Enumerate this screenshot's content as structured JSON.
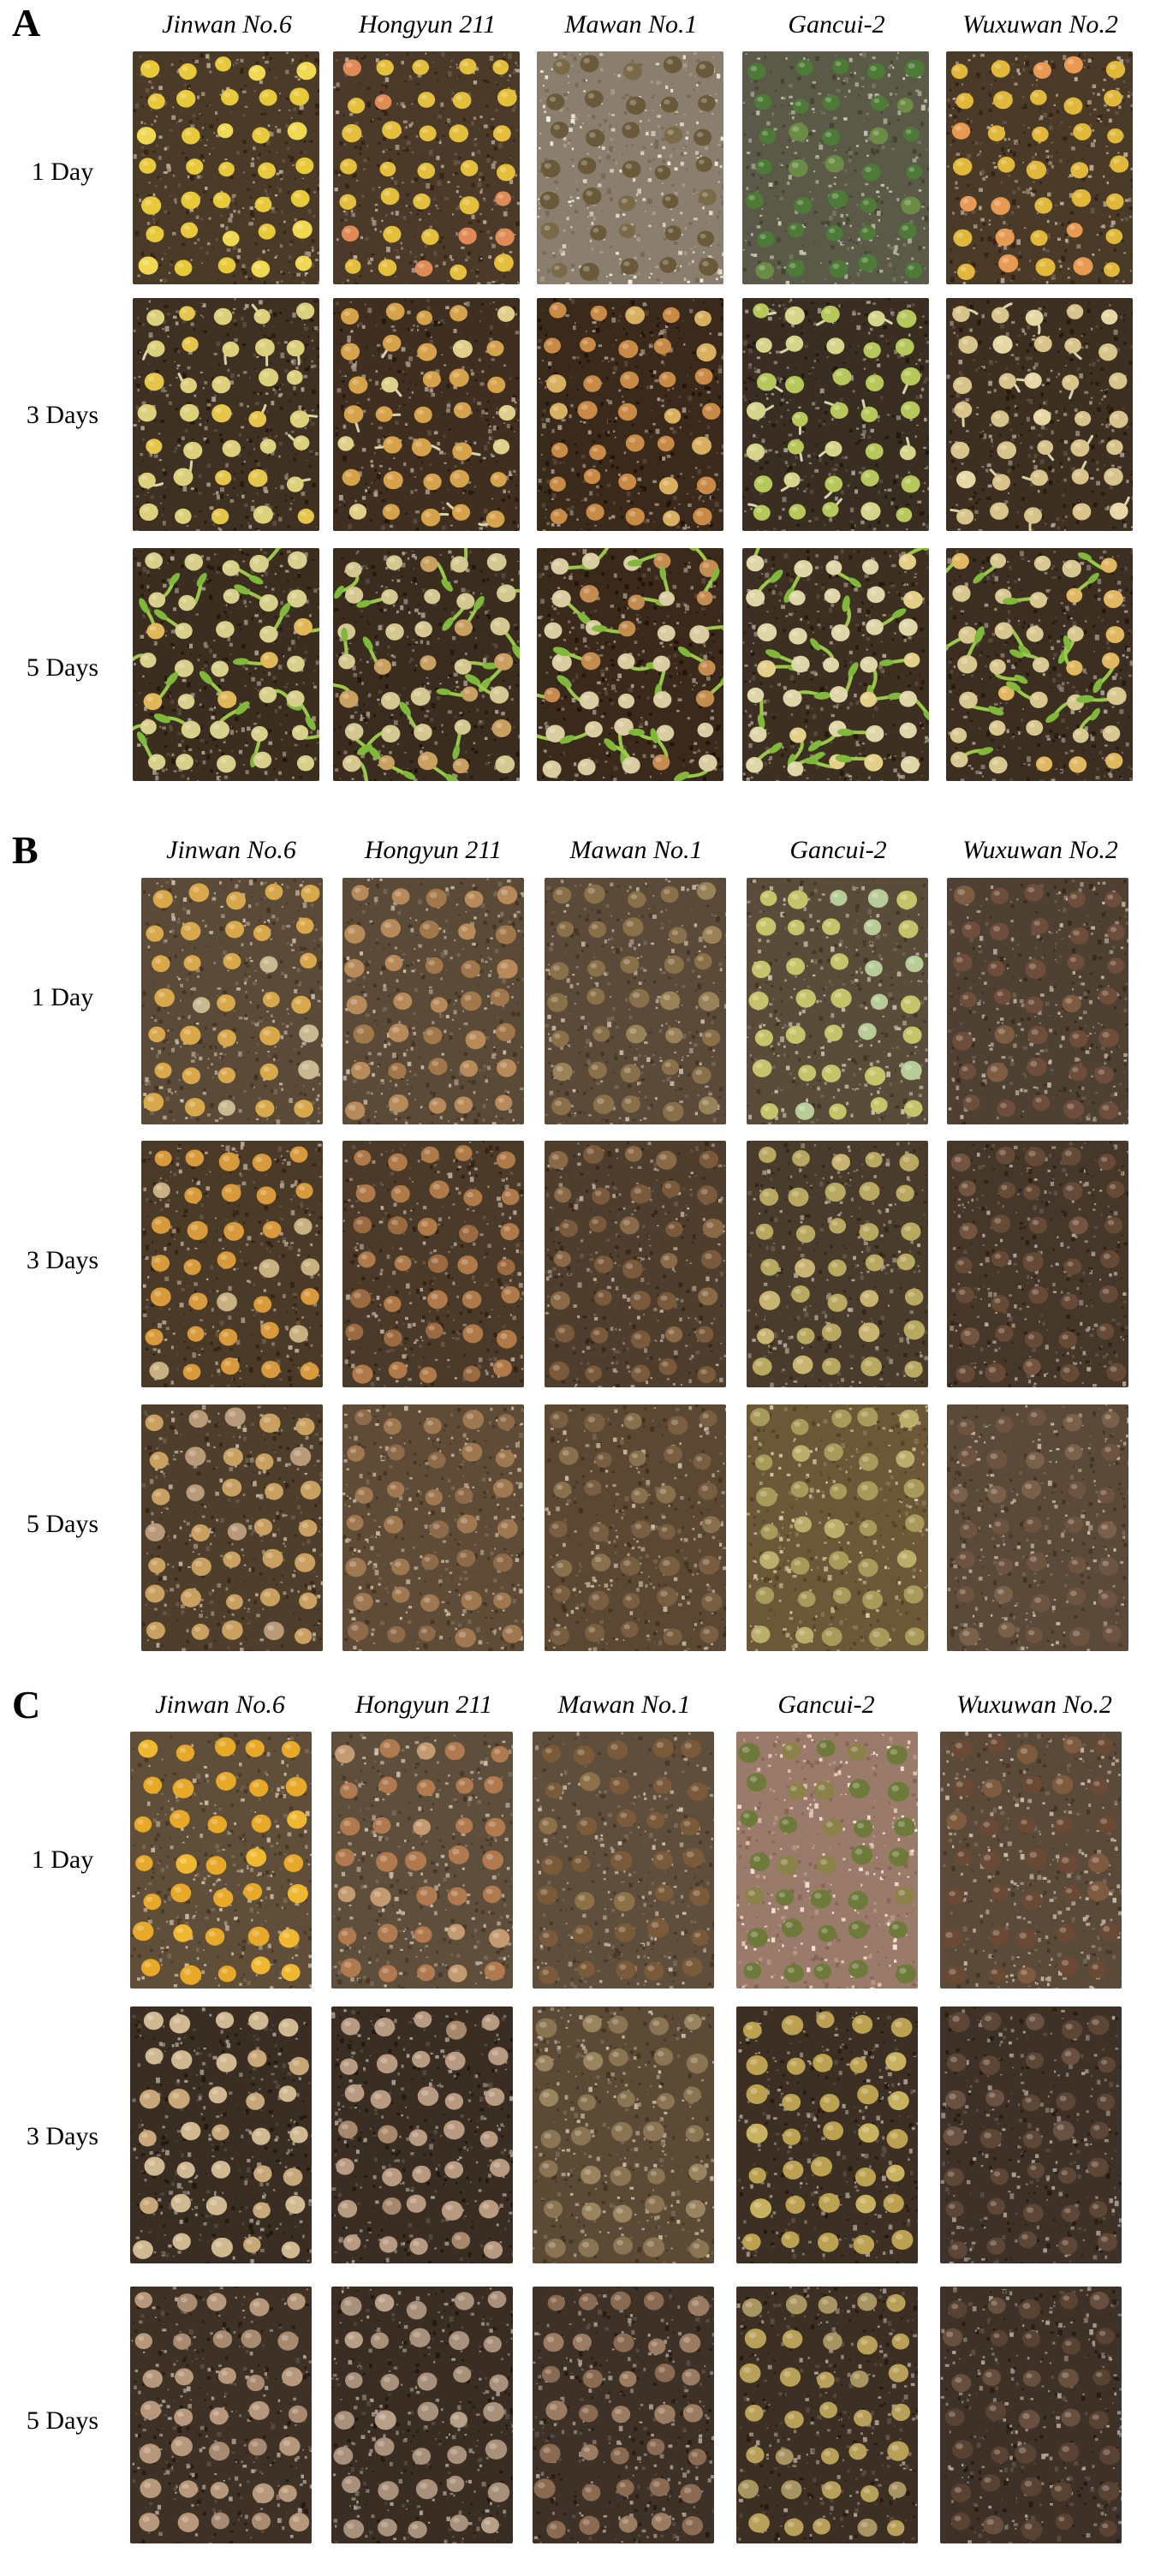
{
  "panels": [
    {
      "label": "A",
      "columns": [
        "Jinwan No.6",
        "Hongyun 211",
        "Mawan No.1",
        "Gancui-2",
        "Wuxuwan No.2"
      ],
      "rows": [
        "1 Day",
        "3 Days",
        "5 Days"
      ]
    },
    {
      "label": "B",
      "columns": [
        "Jinwan No.6",
        "Hongyun 211",
        "Mawan No.1",
        "Gancui-2",
        "Wuxuwan No.2"
      ],
      "rows": [
        "1 Day",
        "3 Days",
        "5 Days"
      ]
    },
    {
      "label": "C",
      "columns": [
        "Jinwan No.6",
        "Hongyun 211",
        "Mawan No.1",
        "Gancui-2",
        "Wuxuwan No.2"
      ],
      "rows": [
        "1 Day",
        "3 Days",
        "5 Days"
      ]
    }
  ],
  "colors": {
    "soil": "#4a3a28",
    "seed_yellow": "#e6c63a",
    "seed_orange": "#d99a45",
    "seed_green": "#6f9a3e",
    "seed_brown": "#7a5a3a",
    "sprout": "#a9c95a"
  }
}
